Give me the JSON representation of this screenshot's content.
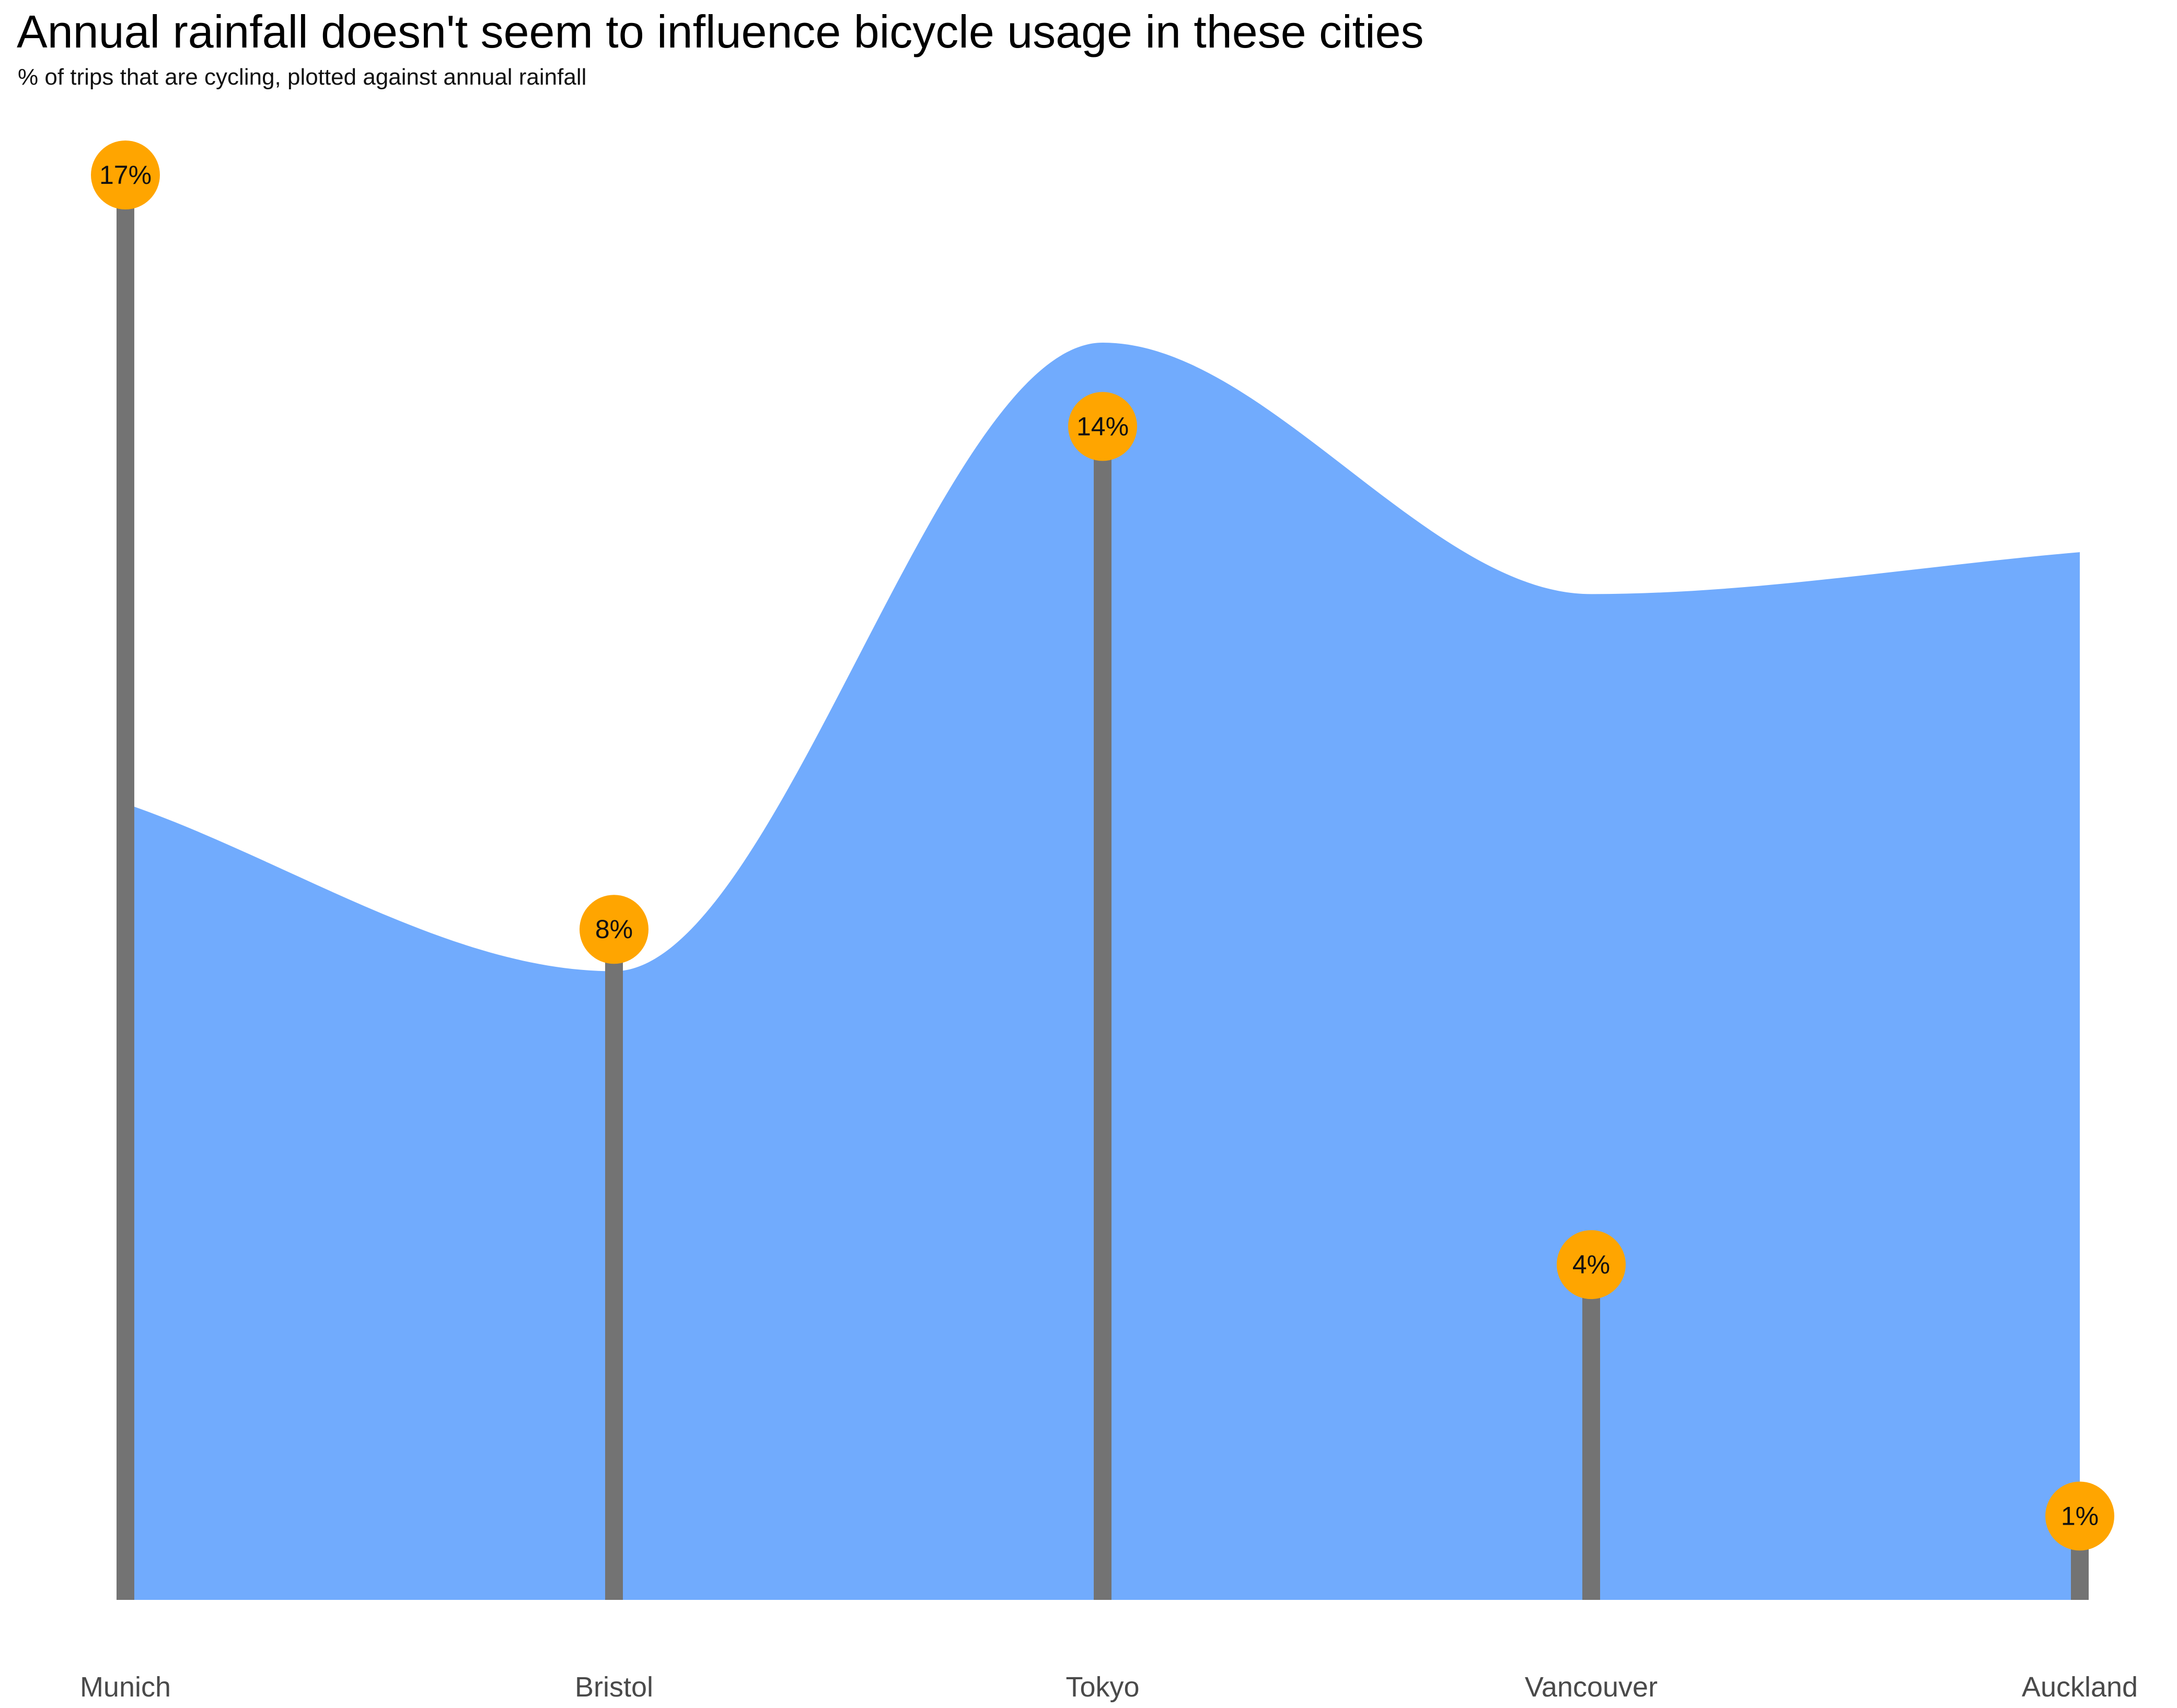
{
  "chart_data": {
    "type": "lollipop-area",
    "title": "Annual rainfall doesn't seem to influence bicycle usage in these cities",
    "subtitle": "% of trips that are cycling, plotted against annual rainfall",
    "categories": [
      "Munich",
      "Bristol",
      "Tokyo",
      "Vancouver",
      "Auckland"
    ],
    "series": [
      {
        "type": "lollipop",
        "values": [
          17,
          8,
          14,
          4,
          1
        ],
        "labels": [
          "17%",
          "8%",
          "14%",
          "4%",
          "1%"
        ],
        "color": "#737373",
        "marker_color": "#FFA500"
      },
      {
        "type": "area",
        "values": [
          9.5,
          7.5,
          15,
          12,
          12.5
        ],
        "color": "#71ABFD"
      }
    ],
    "ylim": [
      0,
      17
    ],
    "grid": false,
    "legend": "none"
  }
}
